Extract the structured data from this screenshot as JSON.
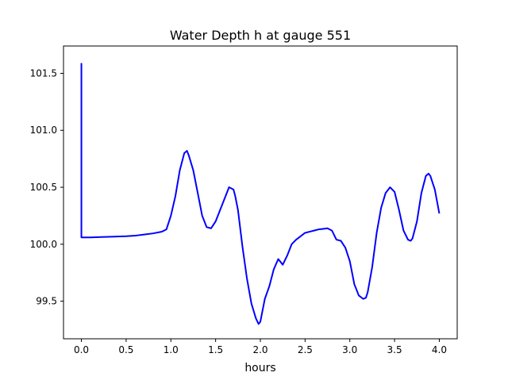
{
  "chart_data": {
    "type": "line",
    "title": "Water Depth h at gauge 551",
    "xlabel": "hours",
    "ylabel": "",
    "xlim": [
      -0.2,
      4.2
    ],
    "ylim": [
      99.17,
      101.74
    ],
    "xticks": [
      0.0,
      0.5,
      1.0,
      1.5,
      2.0,
      2.5,
      3.0,
      3.5,
      4.0
    ],
    "xtick_labels": [
      "0.0",
      "0.5",
      "1.0",
      "1.5",
      "2.0",
      "2.5",
      "3.0",
      "3.5",
      "4.0"
    ],
    "yticks": [
      99.5,
      100.0,
      100.5,
      101.0,
      101.5
    ],
    "ytick_labels": [
      "99.5",
      "100.0",
      "100.5",
      "101.0",
      "101.5"
    ],
    "grid": false,
    "series": [
      {
        "color": "#0000ff",
        "x": [
          0.0,
          0.0,
          0.1,
          0.3,
          0.5,
          0.6,
          0.7,
          0.8,
          0.9,
          0.95,
          1.0,
          1.05,
          1.1,
          1.15,
          1.18,
          1.2,
          1.25,
          1.3,
          1.35,
          1.4,
          1.45,
          1.5,
          1.55,
          1.6,
          1.65,
          1.7,
          1.72,
          1.75,
          1.8,
          1.85,
          1.9,
          1.95,
          1.98,
          2.0,
          2.05,
          2.1,
          2.15,
          2.2,
          2.25,
          2.3,
          2.35,
          2.4,
          2.45,
          2.5,
          2.55,
          2.6,
          2.65,
          2.7,
          2.75,
          2.8,
          2.85,
          2.9,
          2.95,
          3.0,
          3.05,
          3.1,
          3.15,
          3.18,
          3.2,
          3.25,
          3.3,
          3.35,
          3.4,
          3.45,
          3.5,
          3.55,
          3.6,
          3.65,
          3.68,
          3.7,
          3.75,
          3.8,
          3.85,
          3.88,
          3.9,
          3.95,
          4.0
        ],
        "y": [
          101.59,
          100.06,
          100.06,
          100.065,
          100.07,
          100.075,
          100.085,
          100.095,
          100.11,
          100.13,
          100.25,
          100.42,
          100.65,
          100.8,
          100.82,
          100.78,
          100.65,
          100.45,
          100.25,
          100.15,
          100.14,
          100.2,
          100.3,
          100.4,
          100.5,
          100.48,
          100.42,
          100.3,
          99.98,
          99.7,
          99.48,
          99.35,
          99.3,
          99.32,
          99.52,
          99.63,
          99.78,
          99.87,
          99.82,
          99.9,
          100.0,
          100.04,
          100.07,
          100.1,
          100.11,
          100.12,
          100.13,
          100.135,
          100.14,
          100.12,
          100.04,
          100.03,
          99.97,
          99.85,
          99.65,
          99.55,
          99.52,
          99.53,
          99.58,
          99.8,
          100.1,
          100.32,
          100.45,
          100.5,
          100.46,
          100.3,
          100.12,
          100.04,
          100.03,
          100.05,
          100.2,
          100.45,
          100.6,
          100.62,
          100.6,
          100.48,
          100.27
        ]
      }
    ]
  }
}
